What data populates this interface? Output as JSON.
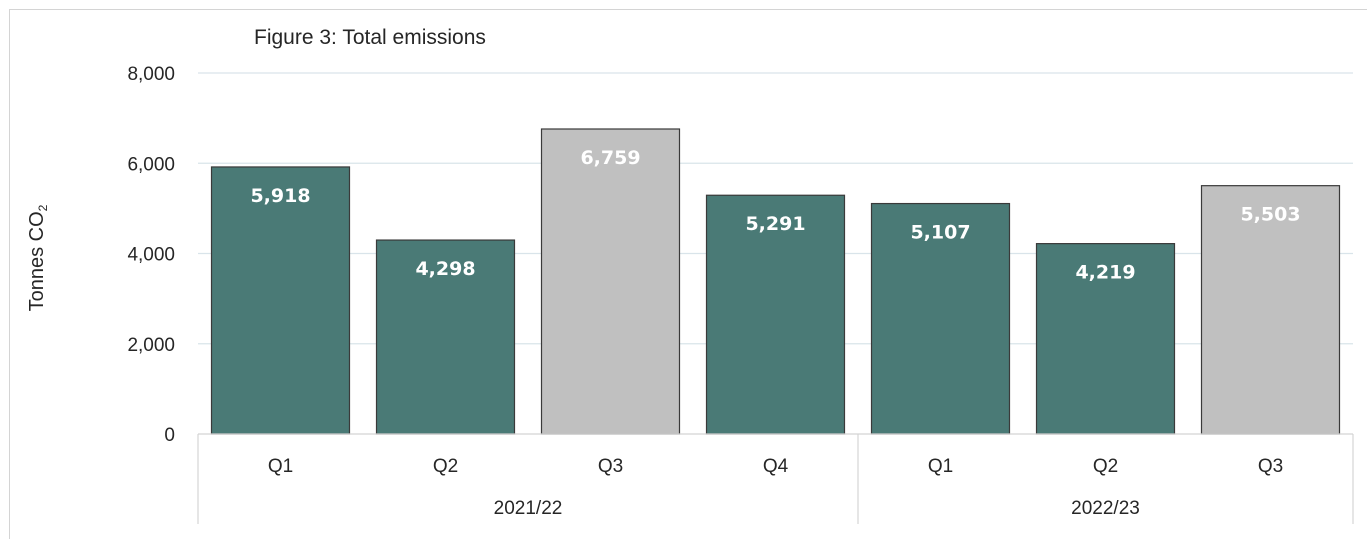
{
  "chart_data": {
    "type": "bar",
    "title": "Figure 3: Total emissions",
    "ylabel": "Tonnes CO",
    "ylabel_sub": "2",
    "xlabel": "",
    "ylim": [
      0,
      8000
    ],
    "yticks": [
      0,
      2000,
      4000,
      6000,
      8000
    ],
    "ytick_labels": [
      "0",
      "2,000",
      "4,000",
      "6,000",
      "8,000"
    ],
    "categories": [
      "Q1",
      "Q2",
      "Q3",
      "Q4",
      "Q1",
      "Q2",
      "Q3"
    ],
    "groups": [
      {
        "label": "2021/22",
        "count": 4
      },
      {
        "label": "2022/23",
        "count": 3
      }
    ],
    "values": [
      5918,
      4298,
      6759,
      5291,
      5107,
      4219,
      5503
    ],
    "data_labels": [
      "5,918",
      "4,298",
      "6,759",
      "5,291",
      "5,107",
      "4,219",
      "5,503"
    ],
    "bar_colors": [
      "#4a7a76",
      "#4a7a76",
      "#c0c0c0",
      "#4a7a76",
      "#4a7a76",
      "#4a7a76",
      "#c0c0c0"
    ],
    "grid": true,
    "legend": "none"
  }
}
